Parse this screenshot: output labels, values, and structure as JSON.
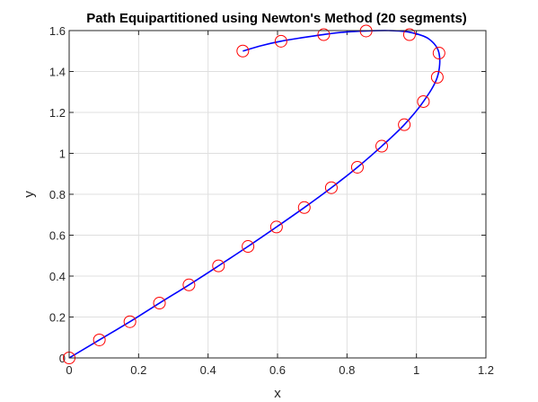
{
  "chart_data": {
    "type": "line",
    "title": "Path Equipartitioned using Newton's Method (20 segments)",
    "xlabel": "x",
    "ylabel": "y",
    "xlim": [
      0,
      1.2
    ],
    "ylim": [
      0,
      1.6
    ],
    "grid": true,
    "x_ticks": [
      "0",
      "0.2",
      "0.4",
      "0.6",
      "0.8",
      "1",
      "1.2"
    ],
    "y_ticks": [
      "0",
      "0.2",
      "0.4",
      "0.6",
      "0.8",
      "1",
      "1.2",
      "1.4",
      "1.6"
    ],
    "colors": {
      "path": "#0000ff",
      "markers": "#ff0000",
      "grid": "#dfdfdf",
      "axes": "#262626"
    },
    "series": [
      {
        "type": "line",
        "x": [
          0,
          0.087,
          0.175,
          0.26,
          0.345,
          0.43,
          0.515,
          0.597,
          0.677,
          0.755,
          0.83,
          0.9,
          0.965,
          1.02,
          1.06,
          1.065,
          1.035,
          0.98,
          0.92,
          0.855,
          0.79,
          0.73,
          0.67,
          0.61,
          0.555,
          0.5
        ],
        "y": [
          0,
          0.088,
          0.177,
          0.268,
          0.357,
          0.45,
          0.545,
          0.64,
          0.735,
          0.832,
          0.932,
          1.035,
          1.14,
          1.253,
          1.372,
          1.49,
          1.56,
          1.592,
          1.6,
          1.598,
          1.592,
          1.58,
          1.565,
          1.548,
          1.527,
          1.5
        ]
      },
      {
        "type": "scatter",
        "marker": "circle",
        "x": [
          0,
          0.087,
          0.175,
          0.26,
          0.345,
          0.43,
          0.515,
          0.597,
          0.677,
          0.755,
          0.83,
          0.9,
          0.965,
          1.02,
          1.06,
          1.065,
          0.98,
          0.855,
          0.733,
          0.61,
          0.5
        ],
        "y": [
          0,
          0.088,
          0.177,
          0.268,
          0.357,
          0.45,
          0.545,
          0.64,
          0.735,
          0.832,
          0.932,
          1.035,
          1.14,
          1.253,
          1.372,
          1.49,
          1.58,
          1.598,
          1.58,
          1.548,
          1.5
        ]
      }
    ]
  }
}
